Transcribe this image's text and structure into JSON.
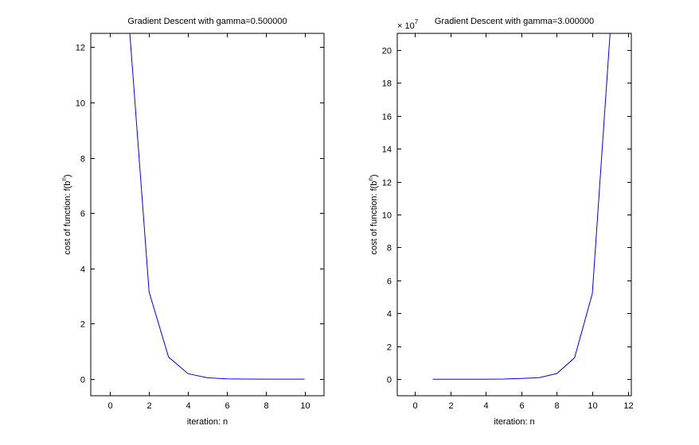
{
  "chart_data": [
    {
      "type": "line",
      "title": "Gradient Descent with gamma=0.500000",
      "xlabel": "iteration: n",
      "ylabel_text": "cost of function: f(b",
      "ylabel_sup": "n",
      "ylabel_close": ")",
      "xlim": [
        -1,
        11
      ],
      "ylim": [
        -0.6,
        12.5
      ],
      "xticks": [
        0,
        2,
        4,
        6,
        8,
        10
      ],
      "yticks": [
        0,
        2,
        4,
        6,
        8,
        10,
        12
      ],
      "exponent_label": "",
      "exponent_power": "",
      "grid": false,
      "series": [
        {
          "color": "#0000ff",
          "x": [
            1,
            2,
            3,
            4,
            5,
            6,
            7,
            8,
            9,
            10
          ],
          "y": [
            12.6,
            3.15,
            0.8,
            0.2,
            0.05,
            0.013,
            0.003,
            0.001,
            0.0003,
            0.0001
          ]
        }
      ]
    },
    {
      "type": "line",
      "title": "Gradient Descent with gamma=3.000000",
      "xlabel": "iteration: n",
      "ylabel_text": "cost of function: f(b",
      "ylabel_sup": "n",
      "ylabel_close": ")",
      "xlim": [
        -1,
        12.2
      ],
      "ylim": [
        -1,
        21
      ],
      "xticks": [
        0,
        2,
        4,
        6,
        8,
        10,
        12
      ],
      "yticks": [
        0,
        2,
        4,
        6,
        8,
        10,
        12,
        14,
        16,
        18,
        20
      ],
      "exponent_label": "× 10",
      "exponent_power": "7",
      "grid": false,
      "series": [
        {
          "color": "#0000ff",
          "x": [
            1,
            2,
            3,
            4,
            5,
            6,
            7,
            8,
            9,
            10,
            11
          ],
          "y": [
            0.0,
            0.0001,
            0.0006,
            0.0027,
            0.012,
            0.05,
            0.1,
            0.35,
            1.3,
            5.2,
            21.0
          ]
        }
      ]
    }
  ]
}
